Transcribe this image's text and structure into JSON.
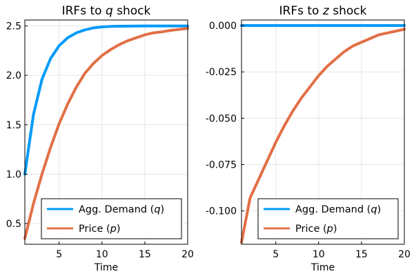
{
  "chart_data": [
    {
      "type": "line",
      "title": "IRFs to",
      "title_var": "q",
      "title_suffix": " shock",
      "xlabel": "Time",
      "ylabel": "",
      "xlim": [
        1,
        20
      ],
      "ylim": [
        0.29,
        2.56
      ],
      "xticks": [
        5,
        10,
        15,
        20
      ],
      "xtick_labels": [
        "5",
        "10",
        "15",
        "20"
      ],
      "yticks": [
        0.5,
        1.0,
        1.5,
        2.0,
        2.5
      ],
      "ytick_labels": [
        "0.5",
        "1.0",
        "1.5",
        "2.0",
        "2.5"
      ],
      "grid": true,
      "legend_position": "bottom-right",
      "x": [
        1,
        2,
        3,
        4,
        5,
        6,
        7,
        8,
        9,
        10,
        11,
        12,
        13,
        14,
        15,
        16,
        17,
        18,
        19,
        20
      ],
      "series": [
        {
          "name": "Agg. Demand",
          "name_var": "q",
          "color": "#009af9",
          "values": [
            1.0,
            1.6,
            1.96,
            2.17,
            2.3,
            2.38,
            2.43,
            2.46,
            2.48,
            2.49,
            2.495,
            2.497,
            2.498,
            2.499,
            2.5,
            2.5,
            2.5,
            2.5,
            2.5,
            2.5
          ]
        },
        {
          "name": "Price",
          "name_var": "p",
          "color": "#e26f46",
          "values": [
            0.35,
            0.7,
            1.0,
            1.27,
            1.51,
            1.71,
            1.88,
            2.02,
            2.12,
            2.2,
            2.26,
            2.31,
            2.35,
            2.38,
            2.41,
            2.43,
            2.44,
            2.455,
            2.465,
            2.475
          ]
        }
      ]
    },
    {
      "type": "line",
      "title": "IRFs to",
      "title_var": "z",
      "title_suffix": " shock",
      "xlabel": "Time",
      "ylabel": "",
      "xlim": [
        1,
        20
      ],
      "ylim": [
        -0.118,
        0.003
      ],
      "xticks": [
        5,
        10,
        15,
        20
      ],
      "xtick_labels": [
        "5",
        "10",
        "15",
        "20"
      ],
      "yticks": [
        0.0,
        -0.025,
        -0.05,
        -0.075,
        -0.1
      ],
      "ytick_labels": [
        "0.000",
        "-0.025",
        "-0.050",
        "-0.075",
        "-0.100"
      ],
      "grid": true,
      "legend_position": "bottom-right",
      "x": [
        1,
        2,
        3,
        4,
        5,
        6,
        7,
        8,
        9,
        10,
        11,
        12,
        13,
        14,
        15,
        16,
        17,
        18,
        19,
        20
      ],
      "series": [
        {
          "name": "Agg. Demand",
          "name_var": "q",
          "color": "#009af9",
          "values": [
            0,
            0,
            0,
            0,
            0,
            0,
            0,
            0,
            0,
            0,
            0,
            0,
            0,
            0,
            0,
            0,
            0,
            0,
            0,
            0
          ]
        },
        {
          "name": "Price",
          "name_var": "p",
          "color": "#e26f46",
          "values": [
            -0.117,
            -0.093,
            -0.083,
            -0.073,
            -0.063,
            -0.054,
            -0.046,
            -0.039,
            -0.033,
            -0.027,
            -0.022,
            -0.018,
            -0.014,
            -0.011,
            -0.009,
            -0.007,
            -0.005,
            -0.004,
            -0.003,
            -0.002
          ]
        }
      ]
    }
  ]
}
